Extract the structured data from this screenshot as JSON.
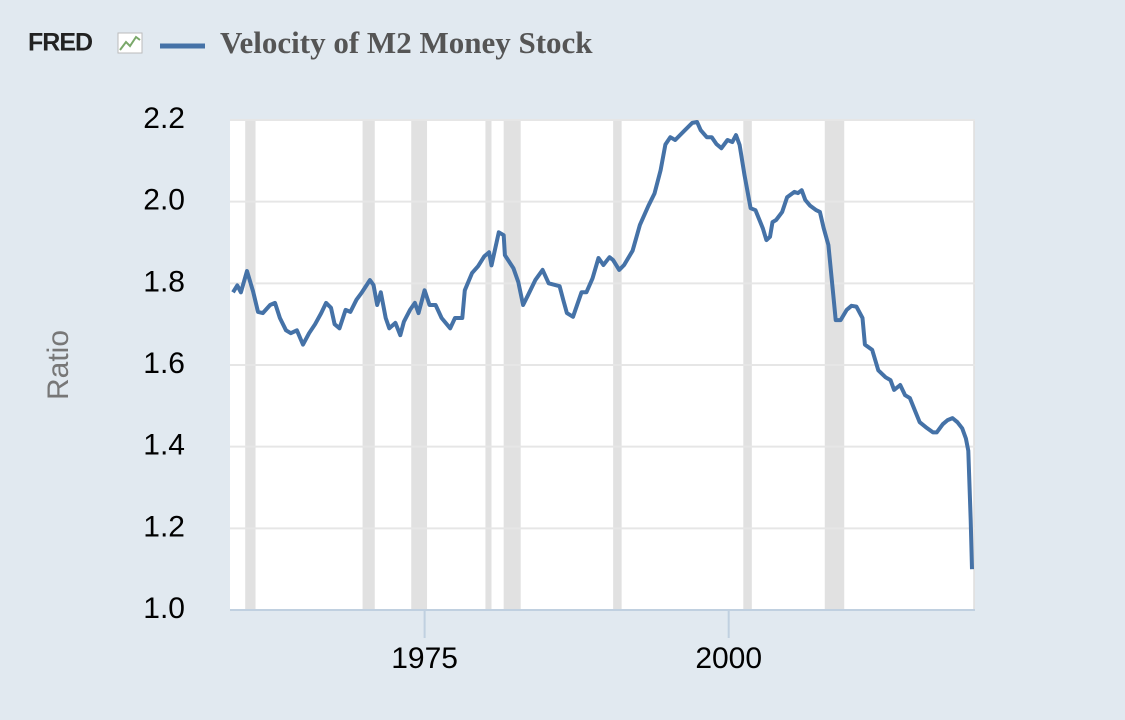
{
  "chart_data": {
    "type": "line",
    "logo": "FRED",
    "ylabel": "Ratio",
    "x": [
      1959.25,
      1959.6,
      1959.9,
      1960.4,
      1960.9,
      1961.3,
      1961.7,
      1962.3,
      1962.7,
      1963.1,
      1963.6,
      1964.0,
      1964.5,
      1965.0,
      1965.5,
      1966.0,
      1966.5,
      1966.9,
      1967.3,
      1967.6,
      1968.0,
      1968.5,
      1968.9,
      1969.4,
      1969.8,
      1970.5,
      1970.8,
      1971.1,
      1971.4,
      1971.8,
      1972.1,
      1972.6,
      1973.0,
      1973.3,
      1973.8,
      1974.2,
      1974.5,
      1975.0,
      1975.4,
      1975.9,
      1976.4,
      1977.1,
      1977.5,
      1978.1,
      1978.3,
      1978.9,
      1979.4,
      1979.9,
      1980.3,
      1980.5,
      1981.1,
      1981.5,
      1981.6,
      1982.3,
      1982.7,
      1983.1,
      1983.5,
      1984.1,
      1984.7,
      1985.2,
      1986.1,
      1986.4,
      1986.7,
      1987.2,
      1987.9,
      1988.3,
      1988.8,
      1989.3,
      1989.7,
      1990.2,
      1990.5,
      1991.0,
      1991.4,
      1992.1,
      1992.7,
      1993.4,
      1993.9,
      1994.4,
      1994.8,
      1995.2,
      1995.6,
      1996.0,
      1996.4,
      1997.0,
      1997.4,
      1997.7,
      1998.2,
      1998.6,
      1999.0,
      1999.4,
      1999.9,
      2000.3,
      2000.6,
      2000.9,
      2001.3,
      2001.6,
      2001.8,
      2002.2,
      2002.8,
      2003.1,
      2003.4,
      2003.6,
      2003.9,
      2004.4,
      2004.8,
      2005.4,
      2005.7,
      2006.0,
      2006.3,
      2006.7,
      2007.2,
      2007.5,
      2007.8,
      2008.2,
      2008.6,
      2008.8,
      2009.2,
      2009.7,
      2010.1,
      2010.5,
      2011.0,
      2011.2,
      2011.8,
      2012.3,
      2012.9,
      2013.3,
      2013.6,
      2014.1,
      2014.5,
      2014.9,
      2015.3,
      2015.7,
      2016.2,
      2016.8,
      2017.1,
      2017.6,
      2018.0,
      2018.4,
      2018.8,
      2019.2,
      2019.5,
      2019.7,
      2019.9,
      2020.0
    ],
    "series": [
      {
        "name": "Velocity of M2 Money Stock",
        "color": "#4572a7",
        "values": [
          1.778,
          1.795,
          1.778,
          1.83,
          1.78,
          1.73,
          1.727,
          1.747,
          1.752,
          1.715,
          1.685,
          1.678,
          1.685,
          1.65,
          1.678,
          1.7,
          1.727,
          1.752,
          1.74,
          1.7,
          1.69,
          1.735,
          1.73,
          1.76,
          1.776,
          1.808,
          1.796,
          1.747,
          1.778,
          1.715,
          1.69,
          1.703,
          1.673,
          1.706,
          1.735,
          1.752,
          1.727,
          1.783,
          1.747,
          1.747,
          1.715,
          1.69,
          1.715,
          1.715,
          1.783,
          1.825,
          1.842,
          1.866,
          1.876,
          1.844,
          1.925,
          1.918,
          1.869,
          1.837,
          1.803,
          1.747,
          1.771,
          1.808,
          1.833,
          1.8,
          1.793,
          1.759,
          1.727,
          1.718,
          1.778,
          1.778,
          1.812,
          1.862,
          1.845,
          1.864,
          1.857,
          1.833,
          1.845,
          1.88,
          1.943,
          1.99,
          2.02,
          2.077,
          2.14,
          2.158,
          2.151,
          2.163,
          2.175,
          2.193,
          2.195,
          2.175,
          2.158,
          2.158,
          2.141,
          2.131,
          2.151,
          2.146,
          2.163,
          2.139,
          2.065,
          2.016,
          1.984,
          1.979,
          1.935,
          1.906,
          1.914,
          1.95,
          1.955,
          1.975,
          2.011,
          2.024,
          2.021,
          2.028,
          2.004,
          1.99,
          1.979,
          1.975,
          1.936,
          1.894,
          1.771,
          1.71,
          1.71,
          1.735,
          1.745,
          1.743,
          1.715,
          1.65,
          1.637,
          1.587,
          1.57,
          1.563,
          1.539,
          1.551,
          1.526,
          1.519,
          1.489,
          1.46,
          1.448,
          1.435,
          1.435,
          1.455,
          1.465,
          1.47,
          1.46,
          1.445,
          1.42,
          1.39,
          1.22,
          1.1
        ]
      }
    ],
    "recessions": [
      [
        1960.25,
        1961.1
      ],
      [
        1969.9,
        1970.9
      ],
      [
        1973.9,
        1975.2
      ],
      [
        1980.0,
        1980.5
      ],
      [
        1981.5,
        1982.9
      ],
      [
        1990.5,
        1991.2
      ],
      [
        2001.2,
        2001.9
      ],
      [
        2007.9,
        2009.5
      ],
      [
        2020.1,
        2020.25
      ]
    ],
    "recession_color": "#e1e1e1",
    "xlim": [
      1959,
      2020.25
    ],
    "xticks": [
      1975,
      2000
    ],
    "ylim": [
      1.0,
      2.2
    ],
    "yticks": [
      {
        "value": 1,
        "label": "1.0"
      },
      1.2,
      1.4,
      1.6,
      1.8,
      {
        "value": 2,
        "label": "2.0"
      },
      2.2
    ],
    "grid": true
  }
}
